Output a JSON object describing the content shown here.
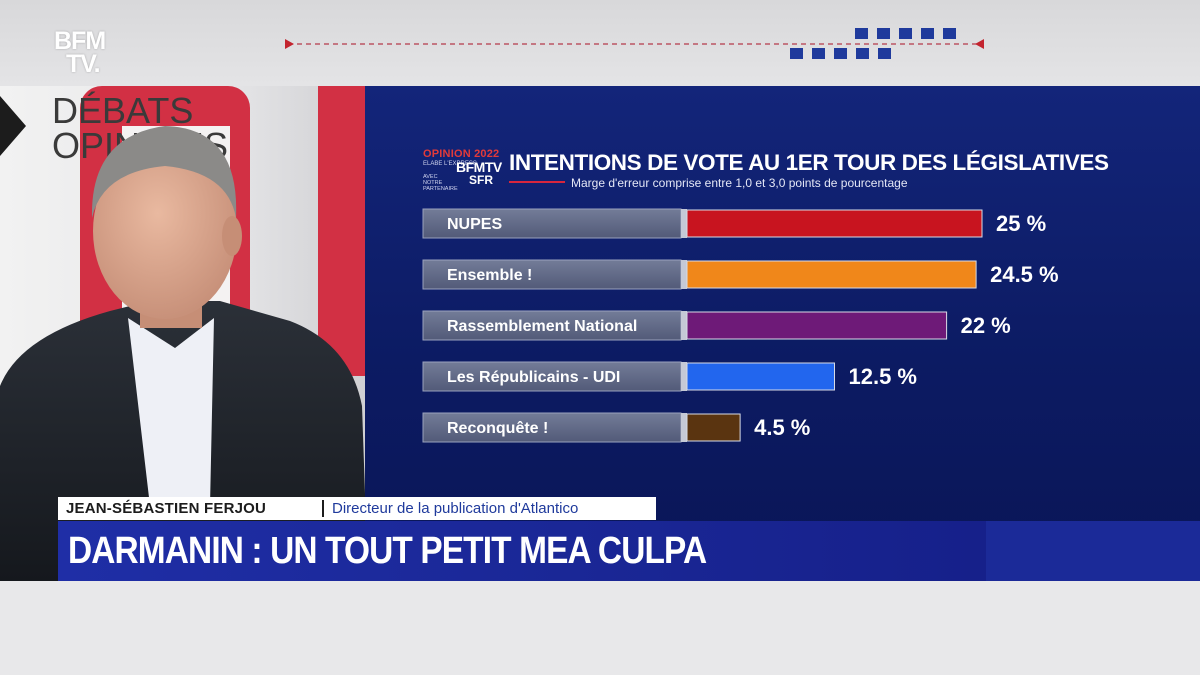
{
  "channel": {
    "logo_line1": "BFM",
    "logo_line2": "TV."
  },
  "studio": {
    "set_text_line1": "DÉBATS",
    "set_text_line2": "OPINIONS"
  },
  "chart_header": {
    "brand_opinion": "OPINION 2022",
    "brand_elabe": "ELABE L'EXPRESS",
    "brand_bfm": "BFMTV",
    "brand_partner": "AVEC NOTRE PARTENAIRE",
    "brand_sfr": "SFR"
  },
  "chart_data": {
    "type": "bar",
    "orientation": "horizontal",
    "title": "INTENTIONS DE VOTE AU 1ER TOUR DES LÉGISLATIVES",
    "subtitle": "Marge d'erreur comprise entre 1,0 et 3,0 points de pourcentage",
    "categories": [
      "NUPES",
      "Ensemble !",
      "Rassemblement National",
      "Les Républicains - UDI",
      "Reconquête !"
    ],
    "values": [
      25,
      24.5,
      22,
      12.5,
      4.5
    ],
    "value_labels": [
      "25 %",
      "24.5 %",
      "22 %",
      "12.5 %",
      "4.5 %"
    ],
    "colors": [
      "#c8141f",
      "#f0871a",
      "#6e1a78",
      "#2266ee",
      "#5a3410"
    ],
    "unit": "%",
    "grid": false,
    "legend": "none"
  },
  "lower_third": {
    "speaker_name": "JEAN-SÉBASTIEN FERJOU",
    "speaker_role": "Directeur de la publication d'Atlantico",
    "headline": "DARMANIN : UN TOUT PETIT MEA CULPA"
  },
  "colors": {
    "panel_bg": "#0f2070",
    "headline_bg": "#1f2ea6",
    "accent_red": "#d7263d"
  }
}
